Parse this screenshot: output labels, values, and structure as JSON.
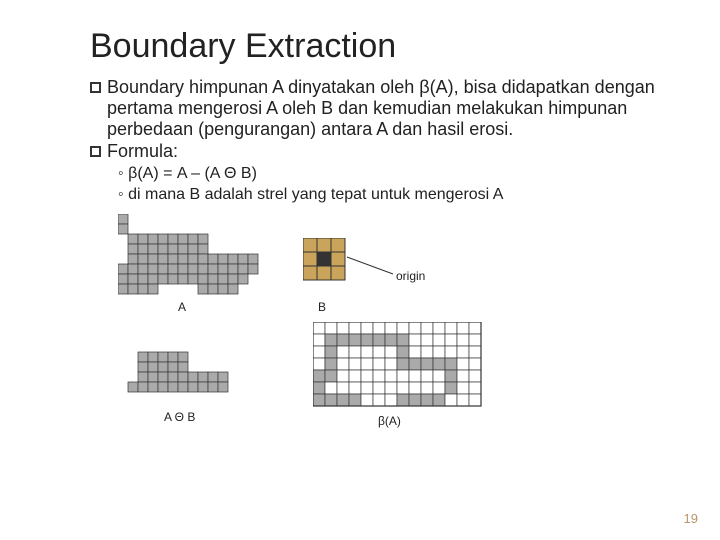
{
  "title": "Boundary Extraction",
  "bullets": {
    "line1": "Boundary himpunan A dinyatakan oleh β(A), bisa didapatkan dengan pertama mengerosi A oleh B dan kemudian melakukan himpunan perbedaan (pengurangan) antara A dan hasil erosi.",
    "line2": "Formula:"
  },
  "sub": {
    "s1": "β(A) = A – (A Θ B)",
    "s2": "di mana B adalah strel yang tepat untuk mengerosi A"
  },
  "labels": {
    "A": "A",
    "B": "B",
    "origin": "origin",
    "erosion": "A Θ B",
    "boundary": "β(A)"
  },
  "page_number": "19",
  "colors": {
    "grid_line": "#333333",
    "cell_fill": "#aaaaaa",
    "cell_bg": "#ffffff",
    "b_fill": "#c9a45a",
    "b_origin": "#333333",
    "text": "#222222",
    "pagenum": "#b99469"
  },
  "figures": {
    "A_grid": {
      "cols": 16,
      "rows": 8,
      "cell": 10,
      "cells": [
        "1000000000000000",
        "1000000000000000",
        "0111111110000000",
        "0111111110000000",
        "0111111111111100",
        "1111111111111100",
        "1111111111111000",
        "1111000011110000"
      ]
    },
    "B_grid": {
      "cols": 3,
      "rows": 3,
      "cell": 14,
      "origin_cell": [
        1,
        1
      ]
    },
    "erosion_grid": {
      "cols": 14,
      "rows": 7,
      "cell": 10,
      "cells": [
        "00000000000000",
        "00000000000000",
        "00111110000000",
        "00111110000000",
        "00111111111000",
        "01111111111000",
        "00000000000000"
      ]
    },
    "boundary_grid": {
      "cols": 14,
      "rows": 7,
      "cell": 12,
      "cells": [
        "00000000000000",
        "01111111000000",
        "01000001000000",
        "01000001111100",
        "11000000000100",
        "10000000000100",
        "11110001111000"
      ]
    }
  }
}
